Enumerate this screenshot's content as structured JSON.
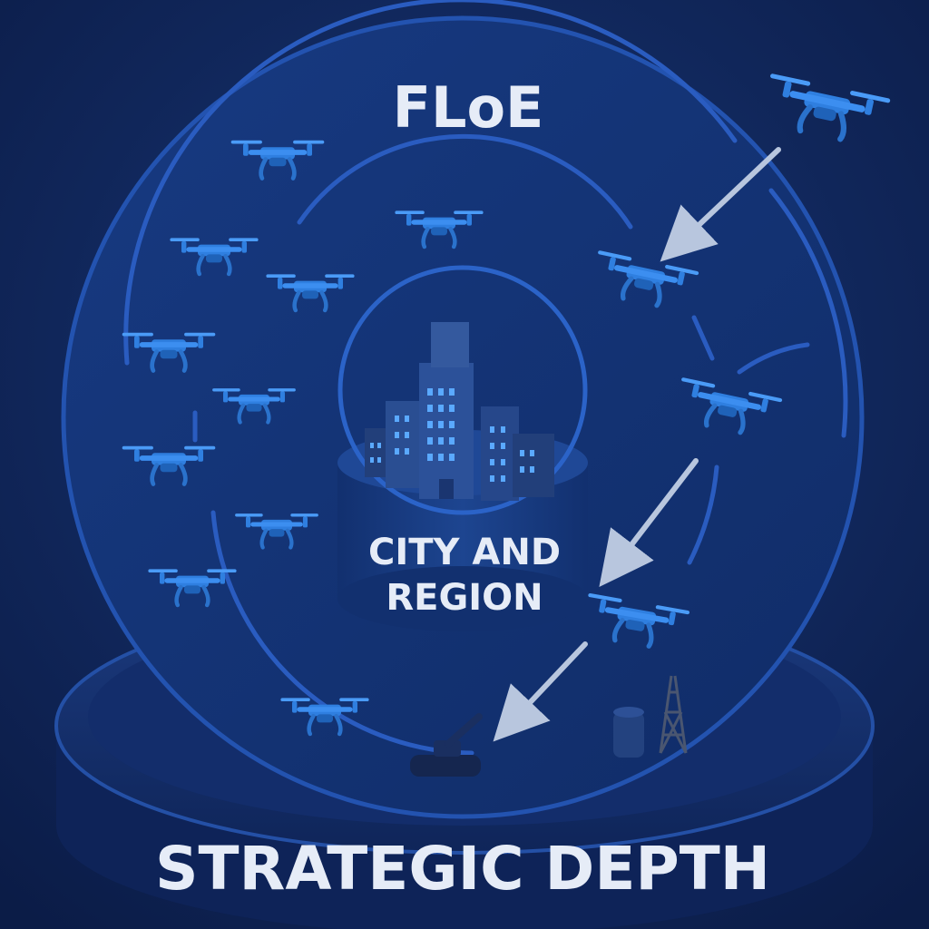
{
  "title": "FLoE",
  "center_label_line1": "CITY AND",
  "center_label_line2": "REGION",
  "bottom_label": "STRATEGIC DEPTH",
  "colors": {
    "background": "#0d2152",
    "ring": "#1a3f8f",
    "drone": "#2f7fe0",
    "building": "#2c4e8c",
    "arrow": "#b8c6de",
    "text": "#e6ecf7"
  },
  "icons": [
    "drone-icon",
    "building-icon",
    "arrow-icon",
    "tank-icon",
    "tower-icon",
    "tank-storage-icon"
  ]
}
